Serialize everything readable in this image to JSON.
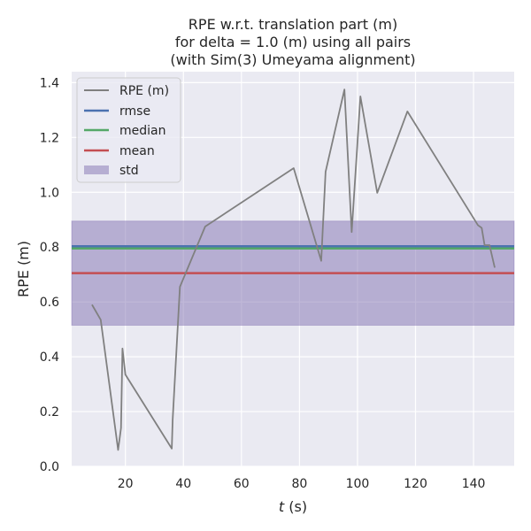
{
  "chart_data": {
    "type": "line",
    "title_lines": [
      "RPE w.r.t. translation part (m)",
      "for delta = 1.0 (m) using all pairs",
      "(with Sim(3) Umeyama alignment)"
    ],
    "xlabel_italic": "t",
    "xlabel_rest": " (s)",
    "ylabel": "RPE (m)",
    "xlim": [
      1.5,
      154
    ],
    "ylim": [
      0,
      1.44
    ],
    "x_ticks": [
      20,
      40,
      60,
      80,
      100,
      120,
      140
    ],
    "x_tick_labels": [
      "20",
      "40",
      "60",
      "80",
      "100",
      "120",
      "140"
    ],
    "y_ticks": [
      0.0,
      0.2,
      0.4,
      0.6,
      0.8,
      1.0,
      1.2,
      1.4
    ],
    "y_tick_labels": [
      "0.0",
      "0.2",
      "0.4",
      "0.6",
      "0.8",
      "1.0",
      "1.2",
      "1.4"
    ],
    "grid": true,
    "legend_position": "top-left",
    "series": [
      {
        "name": "RPE (m)",
        "color": "#808080",
        "points": [
          [
            8.5,
            0.59
          ],
          [
            11.5,
            0.535
          ],
          [
            17.5,
            0.06
          ],
          [
            18.5,
            0.14
          ],
          [
            19.0,
            0.43
          ],
          [
            20.0,
            0.335
          ],
          [
            36.0,
            0.065
          ],
          [
            36.3,
            0.17
          ],
          [
            38.8,
            0.655
          ],
          [
            47.5,
            0.875
          ],
          [
            78.0,
            1.088
          ],
          [
            87.5,
            0.75
          ],
          [
            89.0,
            1.075
          ],
          [
            95.5,
            1.375
          ],
          [
            98.0,
            0.855
          ],
          [
            99.8,
            1.15
          ],
          [
            101.0,
            1.35
          ],
          [
            106.8,
            0.998
          ],
          [
            117.2,
            1.295
          ],
          [
            141.5,
            0.88
          ],
          [
            142.8,
            0.87
          ],
          [
            143.8,
            0.807
          ],
          [
            145.5,
            0.807
          ],
          [
            147.3,
            0.725
          ]
        ]
      }
    ],
    "stats": {
      "rmse": {
        "label": "rmse",
        "value": 0.803,
        "color": "#4c72b0"
      },
      "median": {
        "label": "median",
        "value": 0.795,
        "color": "#55a868"
      },
      "mean": {
        "label": "mean",
        "value": 0.705,
        "color": "#c44e52"
      },
      "std": {
        "label": "std",
        "low": 0.515,
        "high": 0.895,
        "color": "#8172b2"
      }
    },
    "legend_entries": [
      "RPE (m)",
      "rmse",
      "median",
      "mean",
      "std"
    ]
  }
}
